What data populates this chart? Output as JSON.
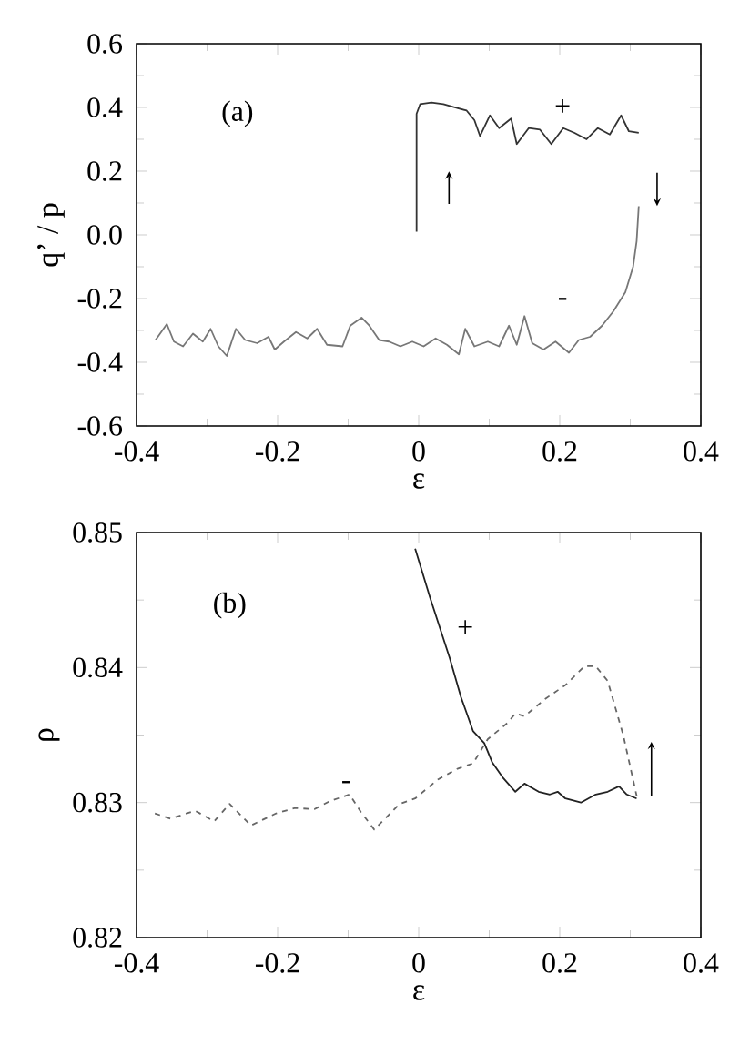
{
  "chart_data": [
    {
      "type": "line",
      "xlabel": "ε",
      "ylabel": "q’ / p",
      "annotations": [
        "(a)"
      ],
      "xlim": [
        -0.4,
        0.4
      ],
      "xticks": [
        -0.4,
        -0.2,
        0,
        0.2,
        0.4
      ],
      "ylim": [
        -0.6,
        0.6
      ],
      "yticks": [
        -0.6,
        -0.4,
        -0.2,
        {
          "value": 0,
          "label": "0.0"
        },
        0.2,
        0.4,
        0.6
      ],
      "series": [
        {
          "name": "+",
          "color": "#333333",
          "line_style": "solid",
          "x": [
            -0.003,
            -0.003,
            0.002,
            0.018,
            0.035,
            0.051,
            0.068,
            0.079,
            0.087,
            0.101,
            0.114,
            0.131,
            0.139,
            0.156,
            0.172,
            0.188,
            0.205,
            0.221,
            0.238,
            0.254,
            0.271,
            0.287,
            0.298,
            0.312
          ],
          "values": [
            0.01,
            0.38,
            0.41,
            0.415,
            0.41,
            0.4,
            0.39,
            0.36,
            0.31,
            0.375,
            0.335,
            0.365,
            0.285,
            0.335,
            0.33,
            0.285,
            0.335,
            0.32,
            0.3,
            0.335,
            0.315,
            0.375,
            0.325,
            0.32
          ]
        },
        {
          "name": "-",
          "color": "#777777",
          "line_style": "solid",
          "x": [
            -0.373,
            -0.357,
            -0.347,
            -0.334,
            -0.32,
            -0.306,
            -0.295,
            -0.284,
            -0.272,
            -0.259,
            -0.246,
            -0.229,
            -0.213,
            -0.204,
            -0.191,
            -0.174,
            -0.158,
            -0.144,
            -0.13,
            -0.108,
            -0.097,
            -0.081,
            -0.07,
            -0.056,
            -0.042,
            -0.026,
            -0.009,
            0.007,
            0.024,
            0.04,
            0.057,
            0.066,
            0.079,
            0.098,
            0.114,
            0.128,
            0.139,
            0.15,
            0.161,
            0.177,
            0.194,
            0.213,
            0.227,
            0.243,
            0.26,
            0.276,
            0.293,
            0.304,
            0.309,
            0.312
          ],
          "values": [
            -0.33,
            -0.28,
            -0.335,
            -0.35,
            -0.31,
            -0.335,
            -0.295,
            -0.35,
            -0.38,
            -0.295,
            -0.33,
            -0.34,
            -0.32,
            -0.36,
            -0.335,
            -0.305,
            -0.325,
            -0.295,
            -0.345,
            -0.35,
            -0.285,
            -0.26,
            -0.285,
            -0.33,
            -0.335,
            -0.35,
            -0.335,
            -0.35,
            -0.325,
            -0.345,
            -0.375,
            -0.295,
            -0.35,
            -0.335,
            -0.35,
            -0.285,
            -0.345,
            -0.255,
            -0.34,
            -0.36,
            -0.335,
            -0.37,
            -0.33,
            -0.32,
            -0.285,
            -0.24,
            -0.18,
            -0.1,
            -0.02,
            0.09
          ]
        }
      ]
    },
    {
      "type": "line",
      "xlabel": "ε",
      "ylabel": "ρ",
      "annotations": [
        "(b)"
      ],
      "xlim": [
        -0.4,
        0.4
      ],
      "xticks": [
        -0.4,
        -0.2,
        0,
        0.2,
        0.4
      ],
      "ylim": [
        0.82,
        0.85
      ],
      "yticks": [
        0.82,
        0.83,
        0.84,
        0.85
      ],
      "series": [
        {
          "name": "+",
          "color": "#222222",
          "line_style": "solid",
          "x": [
            -0.005,
            0.016,
            0.044,
            0.06,
            0.077,
            0.093,
            0.104,
            0.12,
            0.137,
            0.15,
            0.17,
            0.186,
            0.197,
            0.208,
            0.23,
            0.251,
            0.268,
            0.284,
            0.295,
            0.309
          ],
          "values": [
            0.8488,
            0.8452,
            0.8407,
            0.8378,
            0.8353,
            0.8344,
            0.833,
            0.8318,
            0.8308,
            0.8314,
            0.8308,
            0.8306,
            0.8308,
            0.8303,
            0.83,
            0.8306,
            0.8308,
            0.8312,
            0.8306,
            0.8303
          ]
        },
        {
          "name": "-",
          "color": "#666666",
          "line_style": "dashed",
          "x": [
            -0.374,
            -0.352,
            -0.317,
            -0.29,
            -0.268,
            -0.238,
            -0.202,
            -0.175,
            -0.148,
            -0.126,
            -0.098,
            -0.082,
            -0.063,
            -0.027,
            -0.005,
            0.027,
            0.055,
            0.077,
            0.098,
            0.126,
            0.137,
            0.15,
            0.18,
            0.208,
            0.235,
            0.251,
            0.268,
            0.29,
            0.309
          ],
          "values": [
            0.8292,
            0.8288,
            0.8294,
            0.8286,
            0.8299,
            0.8283,
            0.8292,
            0.8296,
            0.8295,
            0.8301,
            0.8306,
            0.8293,
            0.828,
            0.8299,
            0.8303,
            0.8317,
            0.8325,
            0.8329,
            0.8347,
            0.8359,
            0.8366,
            0.8364,
            0.8377,
            0.8387,
            0.8401,
            0.8401,
            0.839,
            0.835,
            0.8305
          ]
        }
      ]
    }
  ]
}
